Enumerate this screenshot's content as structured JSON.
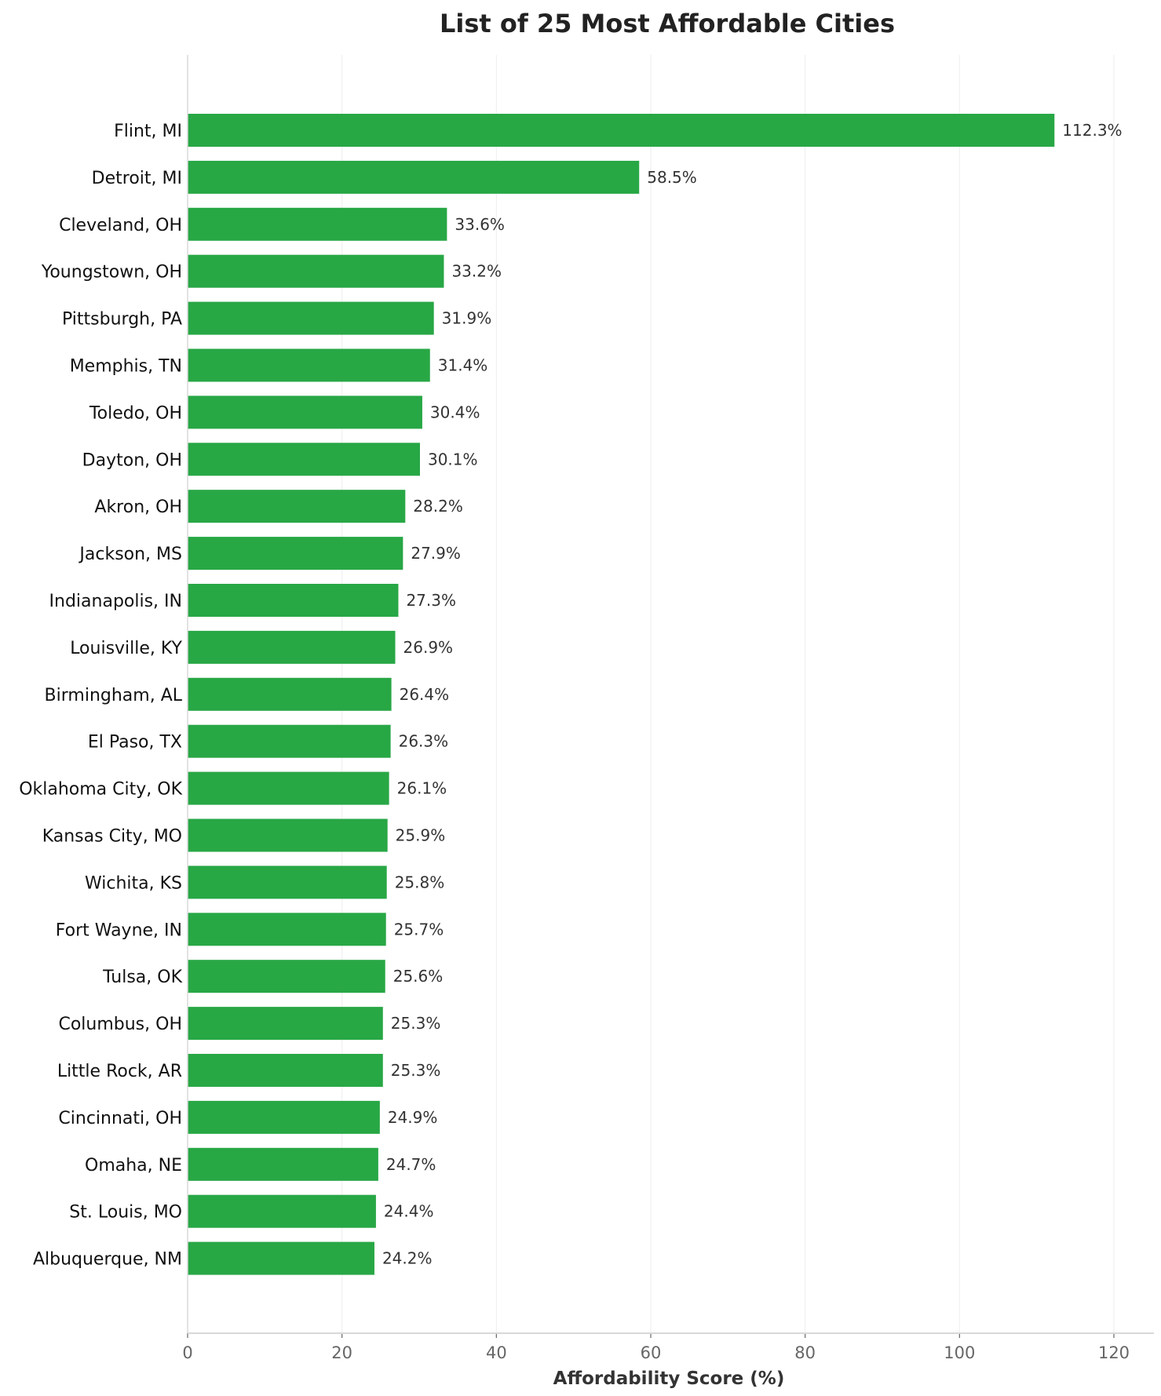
{
  "chart_data": {
    "type": "bar",
    "orientation": "horizontal",
    "title": "List of 25 Most Affordable Cities",
    "xlabel": "Affordability Score (%)",
    "ylabel": "",
    "xlim": [
      0,
      125
    ],
    "xticks": [
      0,
      20,
      40,
      60,
      80,
      100,
      120
    ],
    "grid": "vertical",
    "bar_color": "#28a745",
    "categories": [
      "Flint, MI",
      "Detroit, MI",
      "Cleveland, OH",
      "Youngstown, OH",
      "Pittsburgh, PA",
      "Memphis, TN",
      "Toledo, OH",
      "Dayton, OH",
      "Akron, OH",
      "Jackson, MS",
      "Indianapolis, IN",
      "Louisville, KY",
      "Birmingham, AL",
      "El Paso, TX",
      "Oklahoma City, OK",
      "Kansas City, MO",
      "Wichita, KS",
      "Fort Wayne, IN",
      "Tulsa, OK",
      "Columbus, OH",
      "Little Rock, AR",
      "Cincinnati, OH",
      "Omaha, NE",
      "St. Louis, MO",
      "Albuquerque, NM"
    ],
    "values": [
      112.3,
      58.5,
      33.6,
      33.2,
      31.9,
      31.4,
      30.4,
      30.1,
      28.2,
      27.9,
      27.3,
      26.9,
      26.4,
      26.3,
      26.1,
      25.9,
      25.8,
      25.7,
      25.6,
      25.3,
      25.3,
      24.9,
      24.7,
      24.4,
      24.2
    ],
    "data_labels": [
      "112.3%",
      "58.5%",
      "33.6%",
      "33.2%",
      "31.9%",
      "31.4%",
      "30.4%",
      "30.1%",
      "28.2%",
      "27.9%",
      "27.3%",
      "26.9%",
      "26.4%",
      "26.3%",
      "26.1%",
      "25.9%",
      "25.8%",
      "25.7%",
      "25.6%",
      "25.3%",
      "25.3%",
      "24.9%",
      "24.7%",
      "24.4%",
      "24.2%"
    ]
  }
}
